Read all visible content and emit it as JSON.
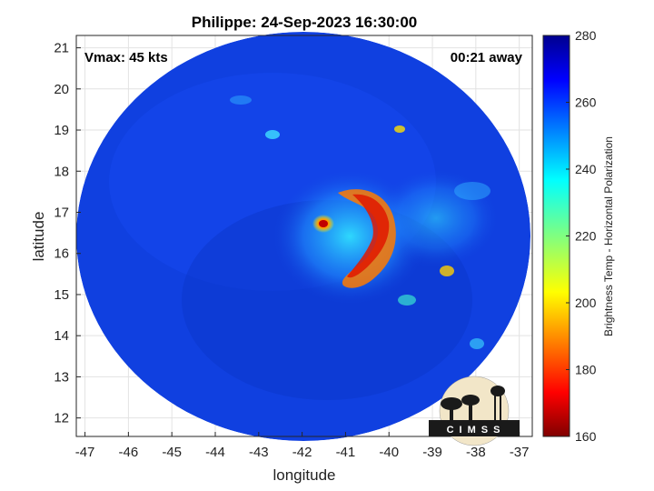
{
  "title": "Philippe: 24-Sep-2023 16:30:00",
  "vmax_label": "Vmax: 45 kts",
  "time_away_label": "00:21 away",
  "xlabel": "longitude",
  "ylabel": "latitude",
  "x_ticks": [
    "-47",
    "-46",
    "-45",
    "-44",
    "-43",
    "-42",
    "-41",
    "-40",
    "-39",
    "-38",
    "-37"
  ],
  "y_ticks": [
    "12",
    "13",
    "14",
    "15",
    "16",
    "17",
    "18",
    "19",
    "20",
    "21"
  ],
  "colorbar": {
    "label": "Brightness Temp - Horizontal Polarization",
    "ticks": [
      "160",
      "180",
      "200",
      "220",
      "240",
      "260",
      "280"
    ],
    "range": [
      160,
      280
    ],
    "colormap": "jet"
  },
  "logo": {
    "text": "CIMSS"
  },
  "map_extent": {
    "lon": [
      -47.2,
      -36.7
    ],
    "lat": [
      11.55,
      21.3
    ]
  },
  "swath_background_color": "#1040e0",
  "storm_center_approx": {
    "lon": -41.3,
    "lat": 16.75
  }
}
